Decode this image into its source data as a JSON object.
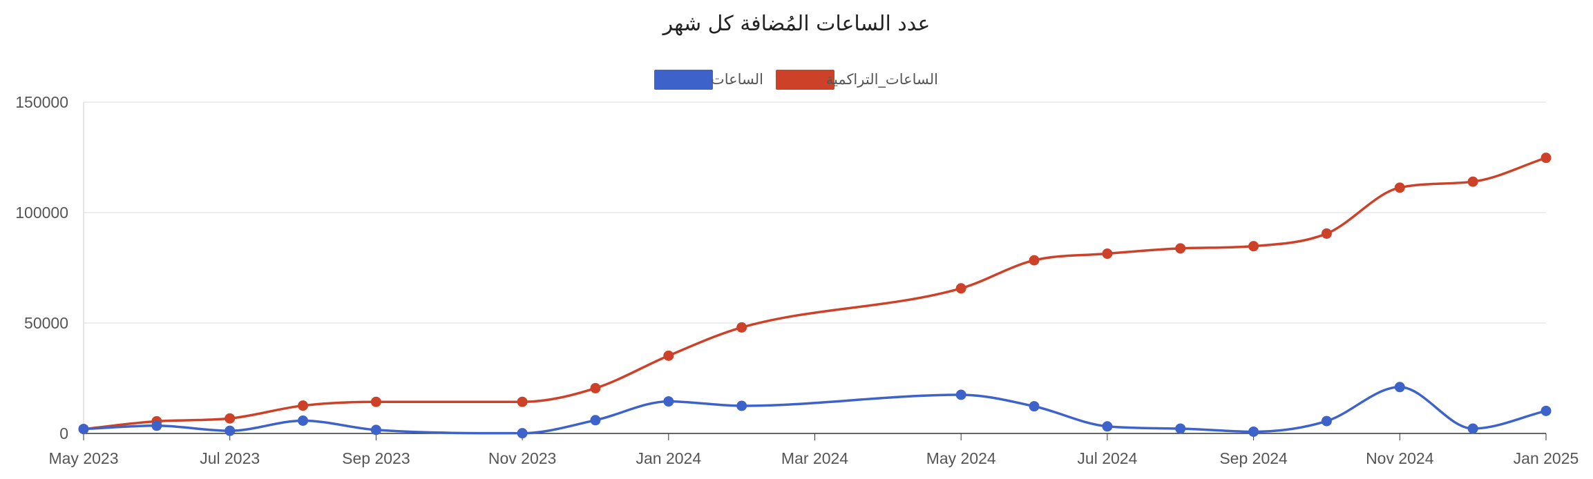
{
  "chart_data": {
    "type": "line",
    "title": "عدد الساعات المُضافة كل شهر",
    "xlabel": "",
    "ylabel": "",
    "ylim": [
      0,
      150000
    ],
    "x": [
      "2023-05",
      "2023-06",
      "2023-07",
      "2023-08",
      "2023-09",
      "2023-11",
      "2023-12",
      "2024-01",
      "2024-02",
      "2024-05",
      "2024-06",
      "2024-07",
      "2024-08",
      "2024-09",
      "2024-10",
      "2024-11",
      "2024-12",
      "2025-01"
    ],
    "x_ticks": [
      "May 2023",
      "Jul 2023",
      "Sep 2023",
      "Nov 2023",
      "Jan 2024",
      "Mar 2024",
      "May 2024",
      "Jul 2024",
      "Sep 2024",
      "Nov 2024",
      "Jan 2025"
    ],
    "y_ticks": [
      "0",
      "50000",
      "100000",
      "150000"
    ],
    "legend_position": "top-center",
    "grid": true,
    "series": [
      {
        "name": "الساعات",
        "color": "#3d62c9",
        "values": [
          2000,
          3500,
          1200,
          5800,
          1600,
          100,
          6000,
          14500,
          12500,
          17500,
          12300,
          3200,
          2200,
          800,
          5600,
          21000,
          2200,
          10200
        ]
      },
      {
        "name": "الساعات_التراكمية",
        "color": "#cc4127",
        "values": [
          2000,
          5500,
          6800,
          12600,
          14300,
          14300,
          20500,
          35200,
          48000,
          65700,
          78400,
          81400,
          83800,
          84800,
          90500,
          111300,
          114000,
          124800
        ]
      }
    ]
  }
}
